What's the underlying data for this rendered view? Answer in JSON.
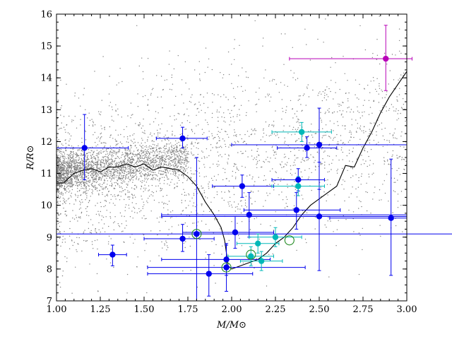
{
  "chart_data": {
    "type": "scatter",
    "title": "",
    "xlabel": "M/M⊙",
    "ylabel": "R/R⊙",
    "xlim": [
      1.0,
      3.0
    ],
    "ylim": [
      7,
      16
    ],
    "x_ticks": [
      "1.00",
      "1.25",
      "1.50",
      "1.75",
      "2.00",
      "2.25",
      "2.50",
      "2.75",
      "3.00"
    ],
    "x_tick_values": [
      1.0,
      1.25,
      1.5,
      1.75,
      2.0,
      2.25,
      2.5,
      2.75,
      3.0
    ],
    "y_ticks": [
      "7",
      "8",
      "9",
      "10",
      "11",
      "12",
      "13",
      "14",
      "15",
      "16"
    ],
    "y_tick_values": [
      7,
      8,
      9,
      10,
      11,
      12,
      13,
      14,
      15,
      16
    ],
    "grid": false,
    "legend": "none",
    "colors": {
      "background_points": "#808080",
      "blue": "#0000ee",
      "cyan": "#00b8b8",
      "magenta": "#b800b8",
      "track": "#000000"
    },
    "track": {
      "x": [
        1.0,
        1.04,
        1.1,
        1.15,
        1.2,
        1.25,
        1.3,
        1.35,
        1.4,
        1.45,
        1.5,
        1.55,
        1.6,
        1.65,
        1.7,
        1.75,
        1.8,
        1.85,
        1.9,
        1.94,
        1.96,
        1.97,
        1.98,
        2.0,
        2.05,
        2.1,
        2.15,
        2.2,
        2.25,
        2.3,
        2.35,
        2.4,
        2.45,
        2.5,
        2.55,
        2.6,
        2.65,
        2.7,
        2.75,
        2.8,
        2.85,
        2.9,
        2.95,
        3.0
      ],
      "y": [
        10.7,
        10.7,
        11.0,
        11.1,
        11.15,
        11.05,
        11.2,
        11.2,
        11.3,
        11.2,
        11.3,
        11.1,
        11.2,
        11.15,
        11.1,
        10.9,
        10.6,
        10.1,
        9.7,
        9.3,
        8.9,
        8.5,
        8.1,
        8.0,
        8.1,
        8.2,
        8.3,
        8.5,
        8.8,
        9.0,
        9.3,
        9.7,
        10.0,
        10.2,
        10.4,
        10.6,
        11.25,
        11.2,
        11.8,
        12.3,
        12.9,
        13.4,
        13.8,
        14.2
      ]
    },
    "series": [
      {
        "color": "blue",
        "points": [
          {
            "x": 1.16,
            "y": 11.8,
            "xerr": [
              0.16,
              0.25
            ],
            "yerr": [
              1.0,
              1.05
            ]
          },
          {
            "x": 1.72,
            "y": 12.1,
            "xerr": [
              0.15,
              0.14
            ],
            "yerr": [
              0.3,
              0.35
            ]
          },
          {
            "x": 1.32,
            "y": 8.45,
            "xerr": [
              0.08,
              0.08
            ],
            "yerr": [
              0.35,
              0.3
            ]
          },
          {
            "x": 1.72,
            "y": 8.95,
            "xerr": [
              0.22,
              0.18
            ],
            "yerr": [
              0.4,
              0.45
            ]
          },
          {
            "x": 1.8,
            "y": 9.1,
            "xerr": [
              0.8,
              1.65
            ],
            "yerr": [
              2.1,
              2.4
            ]
          },
          {
            "x": 1.87,
            "y": 7.85,
            "xerr": [
              0.35,
              0.25
            ],
            "yerr": [
              0.7,
              0.6
            ]
          },
          {
            "x": 1.97,
            "y": 8.3,
            "xerr": [
              0.37,
              0.25
            ],
            "yerr": [
              0.5,
              0.5
            ]
          },
          {
            "x": 1.97,
            "y": 8.05,
            "xerr": [
              0.45,
              0.45
            ],
            "yerr": [
              0.75,
              0.7
            ]
          },
          {
            "x": 2.02,
            "y": 9.15,
            "xerr": [
              0.3,
              0.22
            ],
            "yerr": [
              0.5,
              0.5
            ]
          },
          {
            "x": 2.06,
            "y": 10.6,
            "xerr": [
              0.17,
              0.18
            ],
            "yerr": [
              0.35,
              0.35
            ]
          },
          {
            "x": 2.1,
            "y": 9.7,
            "xerr": [
              0.5,
              0.9
            ],
            "yerr": [
              0.7,
              0.7
            ]
          },
          {
            "x": 2.37,
            "y": 9.85,
            "xerr": [
              0.3,
              0.25
            ],
            "yerr": [
              0.6,
              0.55
            ]
          },
          {
            "x": 2.38,
            "y": 10.8,
            "xerr": [
              0.15,
              0.15
            ],
            "yerr": [
              0.35,
              0.35
            ]
          },
          {
            "x": 2.43,
            "y": 11.8,
            "xerr": [
              0.17,
              0.17
            ],
            "yerr": [
              0.3,
              0.35
            ]
          },
          {
            "x": 2.5,
            "y": 11.9,
            "xerr": [
              0.5,
              0.5
            ],
            "yerr": [
              1.4,
              1.15
            ]
          },
          {
            "x": 2.5,
            "y": 9.65,
            "xerr": [
              0.9,
              0.5
            ],
            "yerr": [
              1.7,
              1.7
            ]
          },
          {
            "x": 2.91,
            "y": 9.6,
            "xerr": [
              0.35,
              0.09
            ],
            "yerr": [
              1.8,
              1.85
            ]
          }
        ]
      },
      {
        "color": "cyan",
        "points": [
          {
            "x": 2.4,
            "y": 12.3,
            "xerr": [
              0.17,
              0.17
            ],
            "yerr": [
              0.3,
              0.3
            ]
          },
          {
            "x": 2.38,
            "y": 10.6,
            "xerr": [
              0.15,
              0.15
            ],
            "yerr": [
              0.3,
              0.3
            ]
          },
          {
            "x": 2.25,
            "y": 9.0,
            "xerr": [
              0.15,
              0.15
            ],
            "yerr": [
              0.3,
              0.3
            ]
          },
          {
            "x": 2.15,
            "y": 8.8,
            "xerr": [
              0.12,
              0.12
            ],
            "yerr": [
              0.3,
              0.3
            ]
          },
          {
            "x": 2.17,
            "y": 8.25,
            "xerr": [
              0.12,
              0.12
            ],
            "yerr": [
              0.3,
              0.3
            ]
          },
          {
            "x": 2.11,
            "y": 8.4,
            "xerr": [
              0.13,
              0.13
            ],
            "yerr": [
              0.3,
              0.3
            ]
          }
        ]
      },
      {
        "color": "magenta",
        "points": [
          {
            "x": 2.88,
            "y": 14.6,
            "xerr": [
              0.55,
              0.15
            ],
            "yerr": [
              1.0,
              1.05
            ]
          }
        ]
      }
    ],
    "circled_points": [
      {
        "x": 1.8,
        "y": 9.1
      },
      {
        "x": 1.97,
        "y": 8.05
      },
      {
        "x": 2.11,
        "y": 8.45
      },
      {
        "x": 2.33,
        "y": 8.9
      }
    ]
  }
}
